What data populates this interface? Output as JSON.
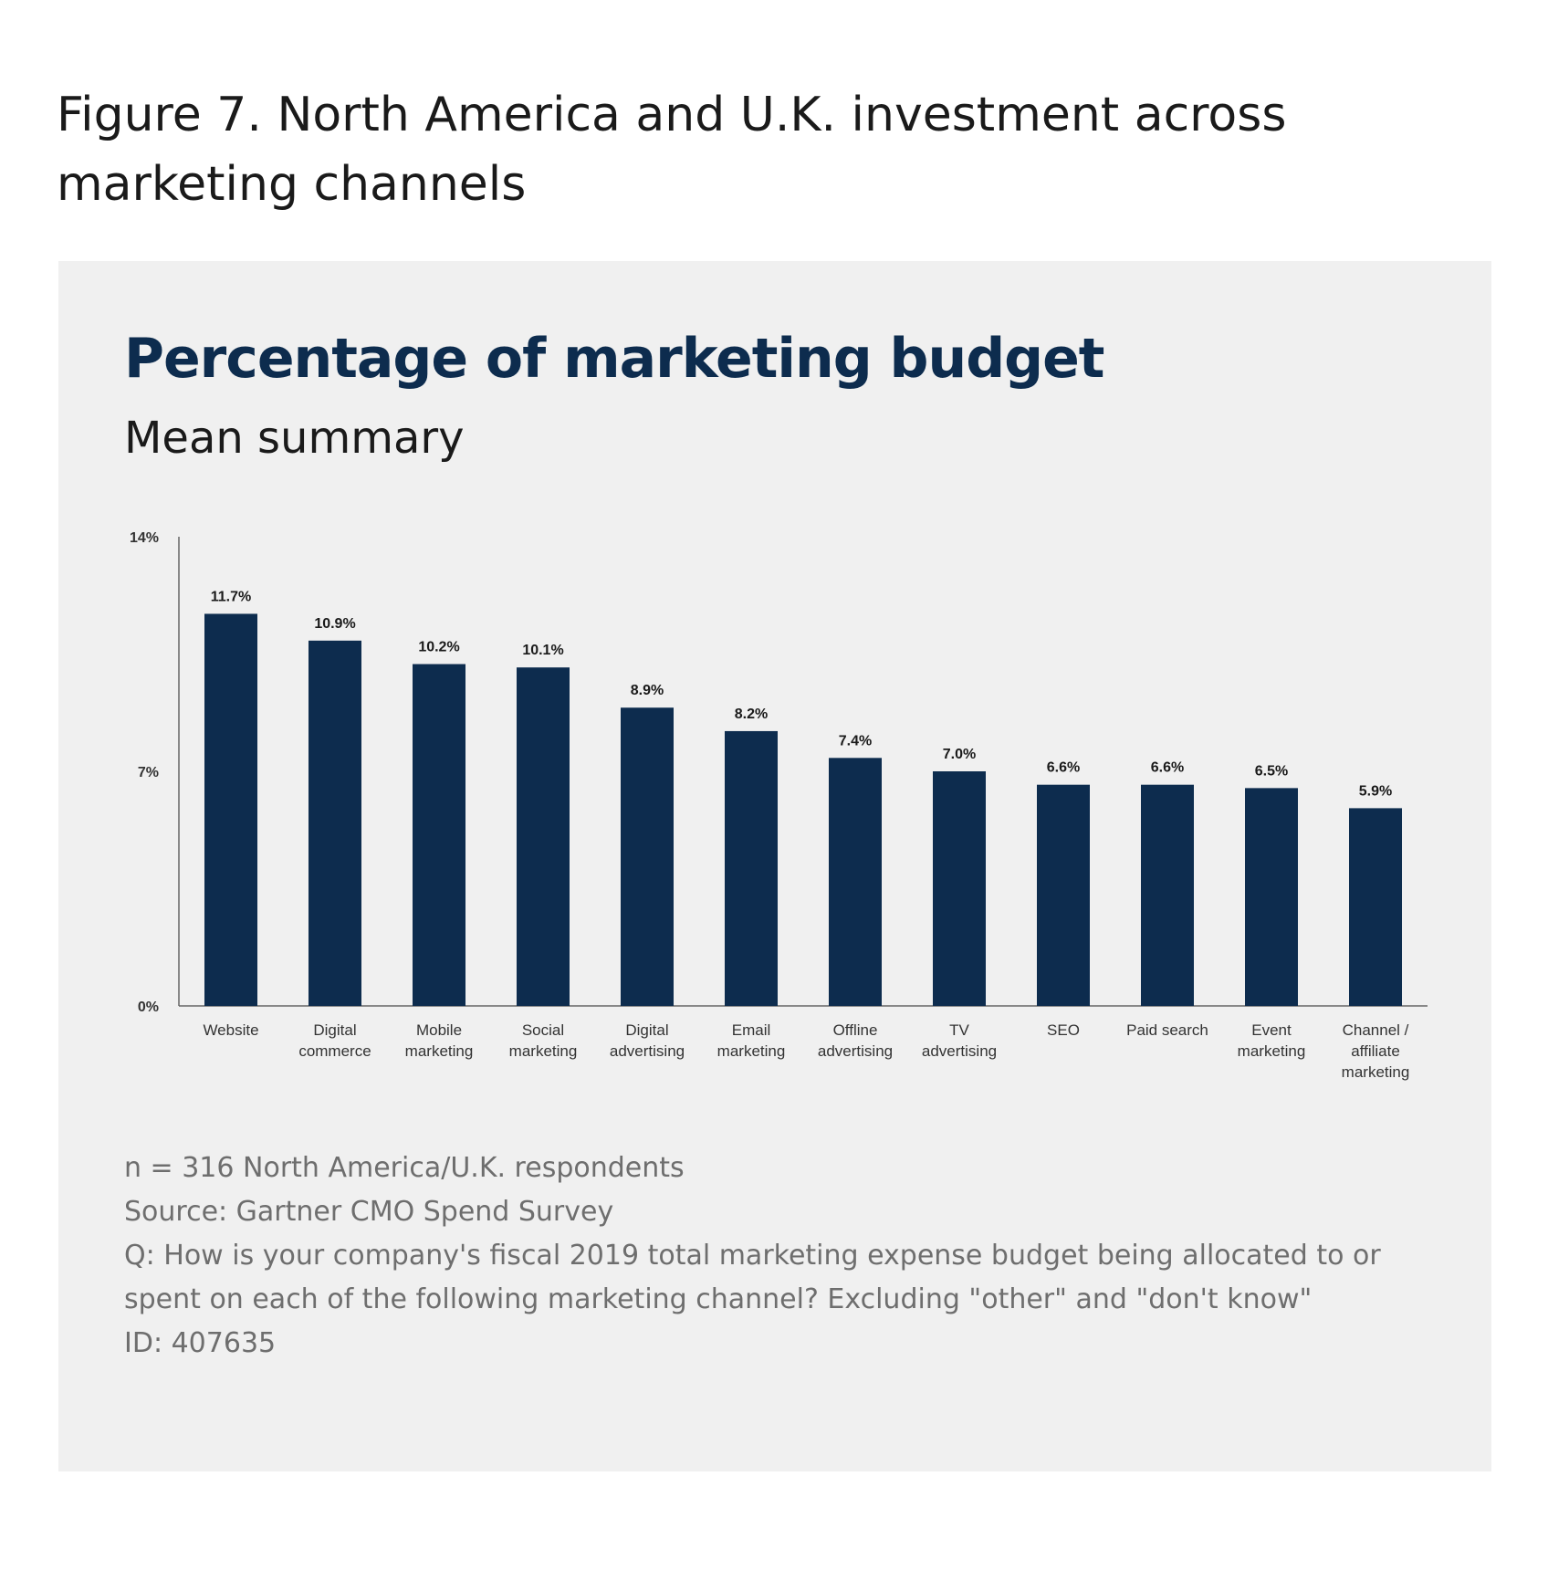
{
  "figure_caption": "Figure 7. North America and U.K. investment across marketing channels",
  "chart_data": {
    "type": "bar",
    "title": "Percentage of marketing budget",
    "subtitle": "Mean summary",
    "xlabel": "",
    "ylabel": "",
    "ylim": [
      0,
      14
    ],
    "yticks": [
      0,
      7,
      14
    ],
    "ytick_labels": [
      "0%",
      "7%",
      "14%"
    ],
    "grid": false,
    "categories": [
      [
        "Website"
      ],
      [
        "Digital",
        "commerce"
      ],
      [
        "Mobile",
        "marketing"
      ],
      [
        "Social",
        "marketing"
      ],
      [
        "Digital",
        "advertising"
      ],
      [
        "Email",
        "marketing"
      ],
      [
        "Offline",
        "advertising"
      ],
      [
        "TV",
        "advertising"
      ],
      [
        "SEO"
      ],
      [
        "Paid search"
      ],
      [
        "Event",
        "marketing"
      ],
      [
        "Channel /",
        "affiliate",
        "marketing"
      ]
    ],
    "values": [
      11.7,
      10.9,
      10.2,
      10.1,
      8.9,
      8.2,
      7.4,
      7.0,
      6.6,
      6.6,
      6.5,
      5.9
    ],
    "value_labels": [
      "11.7%",
      "10.9%",
      "10.2%",
      "10.1%",
      "8.9%",
      "8.2%",
      "7.4%",
      "7.0%",
      "6.6%",
      "6.6%",
      "6.5%",
      "5.9%"
    ],
    "bar_color": "#0d2c4e"
  },
  "notes": {
    "n": "n = 316 North America/U.K. respondents",
    "source": "Source: Gartner CMO Spend Survey",
    "question": "Q: How is your company's fiscal 2019 total marketing expense budget being allocated to or spent on each of the following marketing channel? Excluding \"other\" and \"don't know\"",
    "id": "ID: 407635"
  }
}
